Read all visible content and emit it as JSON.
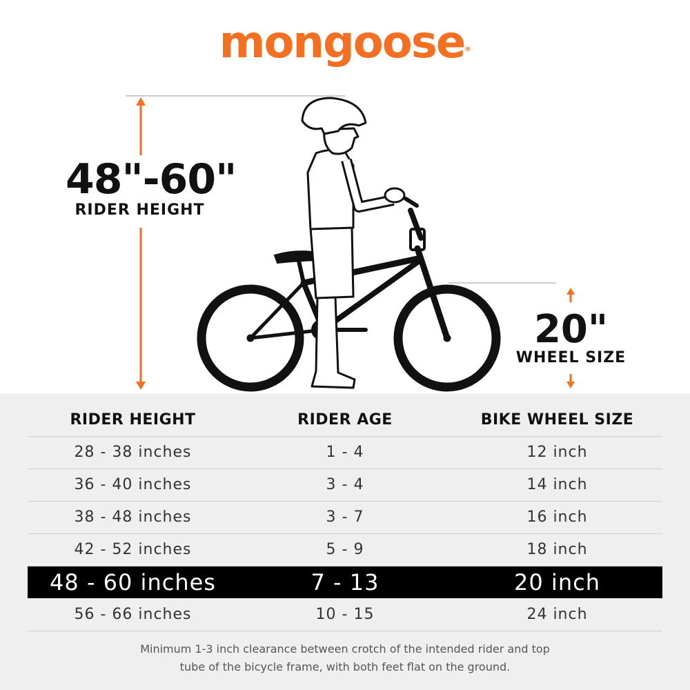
{
  "brand": {
    "name": "mongoose",
    "mark": "®",
    "color": "#f36f21"
  },
  "rider_height": {
    "value": "48\"-60\"",
    "label": "RIDER HEIGHT"
  },
  "wheel": {
    "value": "20\"",
    "label": "WHEEL SIZE"
  },
  "table": {
    "headers": [
      "RIDER HEIGHT",
      "RIDER AGE",
      "BIKE WHEEL SIZE"
    ],
    "rows": [
      [
        "28 - 38 inches",
        "1 - 4",
        "12 inch"
      ],
      [
        "36 - 40 inches",
        "3 - 4",
        "14 inch"
      ],
      [
        "38 - 48 inches",
        "3 - 7",
        "16 inch"
      ],
      [
        "42 - 52 inches",
        "5 - 9",
        "18 inch"
      ],
      [
        "48 - 60 inches",
        "7 - 13",
        "20 inch"
      ],
      [
        "56 - 66 inches",
        "10 - 15",
        "24 inch"
      ]
    ],
    "highlighted_row": 4
  },
  "note": {
    "line1": "Minimum 1-3 inch clearance between crotch of the intended rider and top",
    "line2": "tube of the bicycle frame, with both feet flat on the ground."
  },
  "colors": {
    "accent": "#f36f21",
    "highlight_bg": "#000000",
    "table_bg": "#efefef"
  }
}
